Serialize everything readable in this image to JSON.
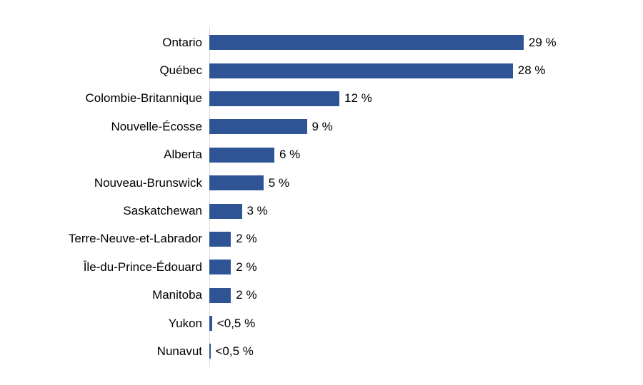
{
  "chart": {
    "background_color": "#ffffff",
    "bar_color": "#2F5496",
    "axis_line_color": "#D9D9D9",
    "text_color": "#000000"
  },
  "chart_data": {
    "type": "bar",
    "orientation": "horizontal",
    "title": "",
    "xlabel": "",
    "ylabel": "",
    "xlim": [
      0,
      31
    ],
    "unit": "%",
    "grid": false,
    "legend": false,
    "categories": [
      "Ontario",
      "Québec",
      "Colombie-Britannique",
      "Nouvelle-Écosse",
      "Alberta",
      "Nouveau-Brunswick",
      "Saskatchewan",
      "Terre-Neuve-et-Labrador",
      "Île-du-Prince-Édouard",
      "Manitoba",
      "Yukon",
      "Nunavut"
    ],
    "values": [
      29,
      28,
      12,
      9,
      6,
      5,
      3,
      2,
      2,
      2,
      0.25,
      0.1
    ],
    "value_labels": [
      "29 %",
      "28 %",
      "12 %",
      "9 %",
      "6 %",
      "5 %",
      "3 %",
      "2 %",
      "2 %",
      "2 %",
      "<0,5 %",
      "<0,5 %"
    ]
  }
}
